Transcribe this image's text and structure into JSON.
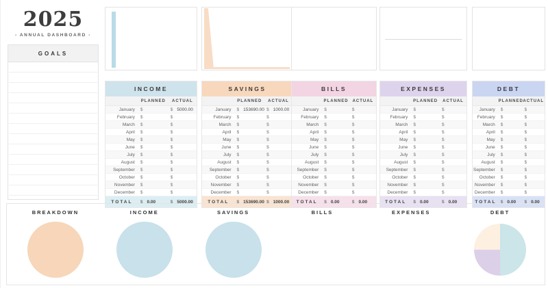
{
  "masthead": {
    "year": "2025",
    "subtitle": "- ANNUAL DASHBOARD -"
  },
  "goals": {
    "header": "GOALS"
  },
  "currency": "$",
  "months": [
    "January",
    "February",
    "March",
    "April",
    "May",
    "June",
    "July",
    "August",
    "September",
    "October",
    "November",
    "December"
  ],
  "table_headers": {
    "planned": "PLANNED",
    "actual": "ACTUAL",
    "total": "TOTAL"
  },
  "sections": [
    {
      "id": "income",
      "title": "INCOME",
      "colors": {
        "header": "#cfe3ec",
        "total": "#dceef3"
      },
      "chart": {
        "type": "bar",
        "color": "#b9dbe7"
      },
      "planned": [
        "",
        "",
        "",
        "",
        "",
        "",
        "",
        "",
        "",
        "",
        "",
        ""
      ],
      "actual": [
        "5000.00",
        "",
        "",
        "",
        "",
        "",
        "",
        "",
        "",
        "",
        "",
        ""
      ],
      "total_planned": "0.00",
      "total_actual": "5000.00"
    },
    {
      "id": "savings",
      "title": "SAVINGS",
      "colors": {
        "header": "#f8d8bd",
        "total": "#fae3d0"
      },
      "chart": {
        "type": "area",
        "color": "#f8dcc5"
      },
      "planned": [
        "153690.00",
        "",
        "",
        "",
        "",
        "",
        "",
        "",
        "",
        "",
        "",
        ""
      ],
      "actual": [
        "1000.00",
        "",
        "",
        "",
        "",
        "",
        "",
        "",
        "",
        "",
        "",
        ""
      ],
      "total_planned": "153690.00",
      "total_actual": "1000.00"
    },
    {
      "id": "bills",
      "title": "BILLS",
      "colors": {
        "header": "#f3d4e2",
        "total": "#f7e0ea"
      },
      "chart": {
        "type": "empty"
      },
      "planned": [
        "",
        "",
        "",
        "",
        "",
        "",
        "",
        "",
        "",
        "",
        "",
        ""
      ],
      "actual": [
        "",
        "",
        "",
        "",
        "",
        "",
        "",
        "",
        "",
        "",
        "",
        ""
      ],
      "total_planned": "0.00",
      "total_actual": "0.00"
    },
    {
      "id": "expenses",
      "title": "EXPENSES",
      "colors": {
        "header": "#ded3ed",
        "total": "#e8e0f3"
      },
      "chart": {
        "type": "line",
        "color": "#d9d9d9"
      },
      "planned": [
        "",
        "",
        "",
        "",
        "",
        "",
        "",
        "",
        "",
        "",
        "",
        ""
      ],
      "actual": [
        "",
        "",
        "",
        "",
        "",
        "",
        "",
        "",
        "",
        "",
        "",
        ""
      ],
      "total_planned": "0.00",
      "total_actual": "0.00"
    },
    {
      "id": "debt",
      "title": "DEBT",
      "colors": {
        "header": "#cad5f2",
        "total": "#d9e1f6"
      },
      "chart": {
        "type": "empty"
      },
      "planned": [
        "",
        "",
        "",
        "",
        "",
        "",
        "",
        "",
        "",
        "",
        "",
        ""
      ],
      "actual": [
        "",
        "",
        "",
        "",
        "",
        "",
        "",
        "",
        "",
        "",
        "",
        ""
      ],
      "total_planned": "0.00",
      "total_actual": "0.00"
    }
  ],
  "breakdown": {
    "items": [
      {
        "label": "BREAKDOWN",
        "pie": {
          "style": "solid",
          "color": "#f7d6b9"
        }
      },
      {
        "label": "INCOME",
        "pie": {
          "style": "solid",
          "color": "#c8e1ea"
        }
      },
      {
        "label": "SAVINGS",
        "pie": {
          "style": "solid",
          "color": "#c8e1ea"
        }
      },
      {
        "label": "BILLS",
        "pie": {
          "style": "none"
        }
      },
      {
        "label": "EXPENSES",
        "pie": {
          "style": "none"
        }
      },
      {
        "label": "DEBT",
        "pie": {
          "style": "segmented",
          "segments": [
            {
              "color": "#cbe5e9",
              "from": 0,
              "to": 50
            },
            {
              "color": "#dcd0e9",
              "from": 50,
              "to": 75
            },
            {
              "color": "#fdf0e1",
              "from": 75,
              "to": 100
            }
          ]
        }
      }
    ]
  }
}
